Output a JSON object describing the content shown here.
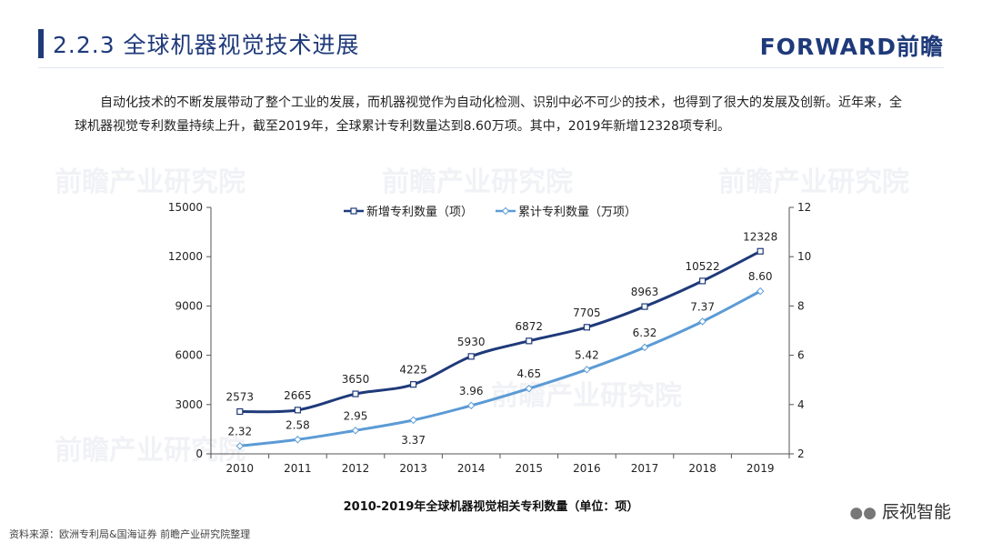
{
  "header": {
    "title": "2.2.3 全球机器视觉技术进展",
    "brand": "FORWARD前瞻"
  },
  "intro_text": "自动化技术的不断发展带动了整个工业的发展，而机器视觉作为自动化检测、识别中必不可少的技术，也得到了很大的发展及创新。近年来，全球机器视觉专利数量持续上升，截至2019年，全球累计专利数量达到8.60万项。其中，2019年新增12328项专利。",
  "watermark": "前瞻产业研究院",
  "colors": {
    "title_accent": "#1f3a7a",
    "series_new": "#1f3a7a",
    "series_cum": "#5b9bd5"
  },
  "chart_data": {
    "type": "line",
    "title": "2010-2019年全球机器视觉相关专利数量（单位：项）",
    "categories": [
      "2010",
      "2011",
      "2012",
      "2013",
      "2014",
      "2015",
      "2016",
      "2017",
      "2018",
      "2019"
    ],
    "y_left": {
      "ylim": [
        0,
        15000
      ],
      "ticks": [
        "0",
        "3000",
        "6000",
        "9000",
        "12000",
        "15000"
      ]
    },
    "y_right": {
      "ylim": [
        2,
        12
      ],
      "ticks": [
        "2",
        "4",
        "6",
        "8",
        "10",
        "12"
      ]
    },
    "legend_position": "top",
    "grid": false,
    "series": [
      {
        "name": "新增专利数量（项）",
        "axis": "left",
        "values": [
          2573,
          2665,
          3650,
          4225,
          5930,
          6872,
          7705,
          8963,
          10522,
          12328
        ],
        "labels": [
          "2573",
          "2665",
          "3650",
          "4225",
          "5930",
          "6872",
          "7705",
          "8963",
          "10522",
          "12328"
        ]
      },
      {
        "name": "累计专利数量（万项）",
        "axis": "right",
        "values": [
          2.32,
          2.58,
          2.95,
          3.37,
          3.96,
          4.65,
          5.42,
          6.32,
          7.37,
          8.6
        ],
        "labels": [
          "2.32",
          "2.58",
          "2.95",
          "3.37",
          "3.96",
          "4.65",
          "5.42",
          "6.32",
          "7.37",
          "8.60"
        ]
      }
    ]
  },
  "footer": {
    "source": "资料来源：欧洲专利局&国海证券 前瞻产业研究院整理",
    "wechat_label": "辰视智能"
  }
}
